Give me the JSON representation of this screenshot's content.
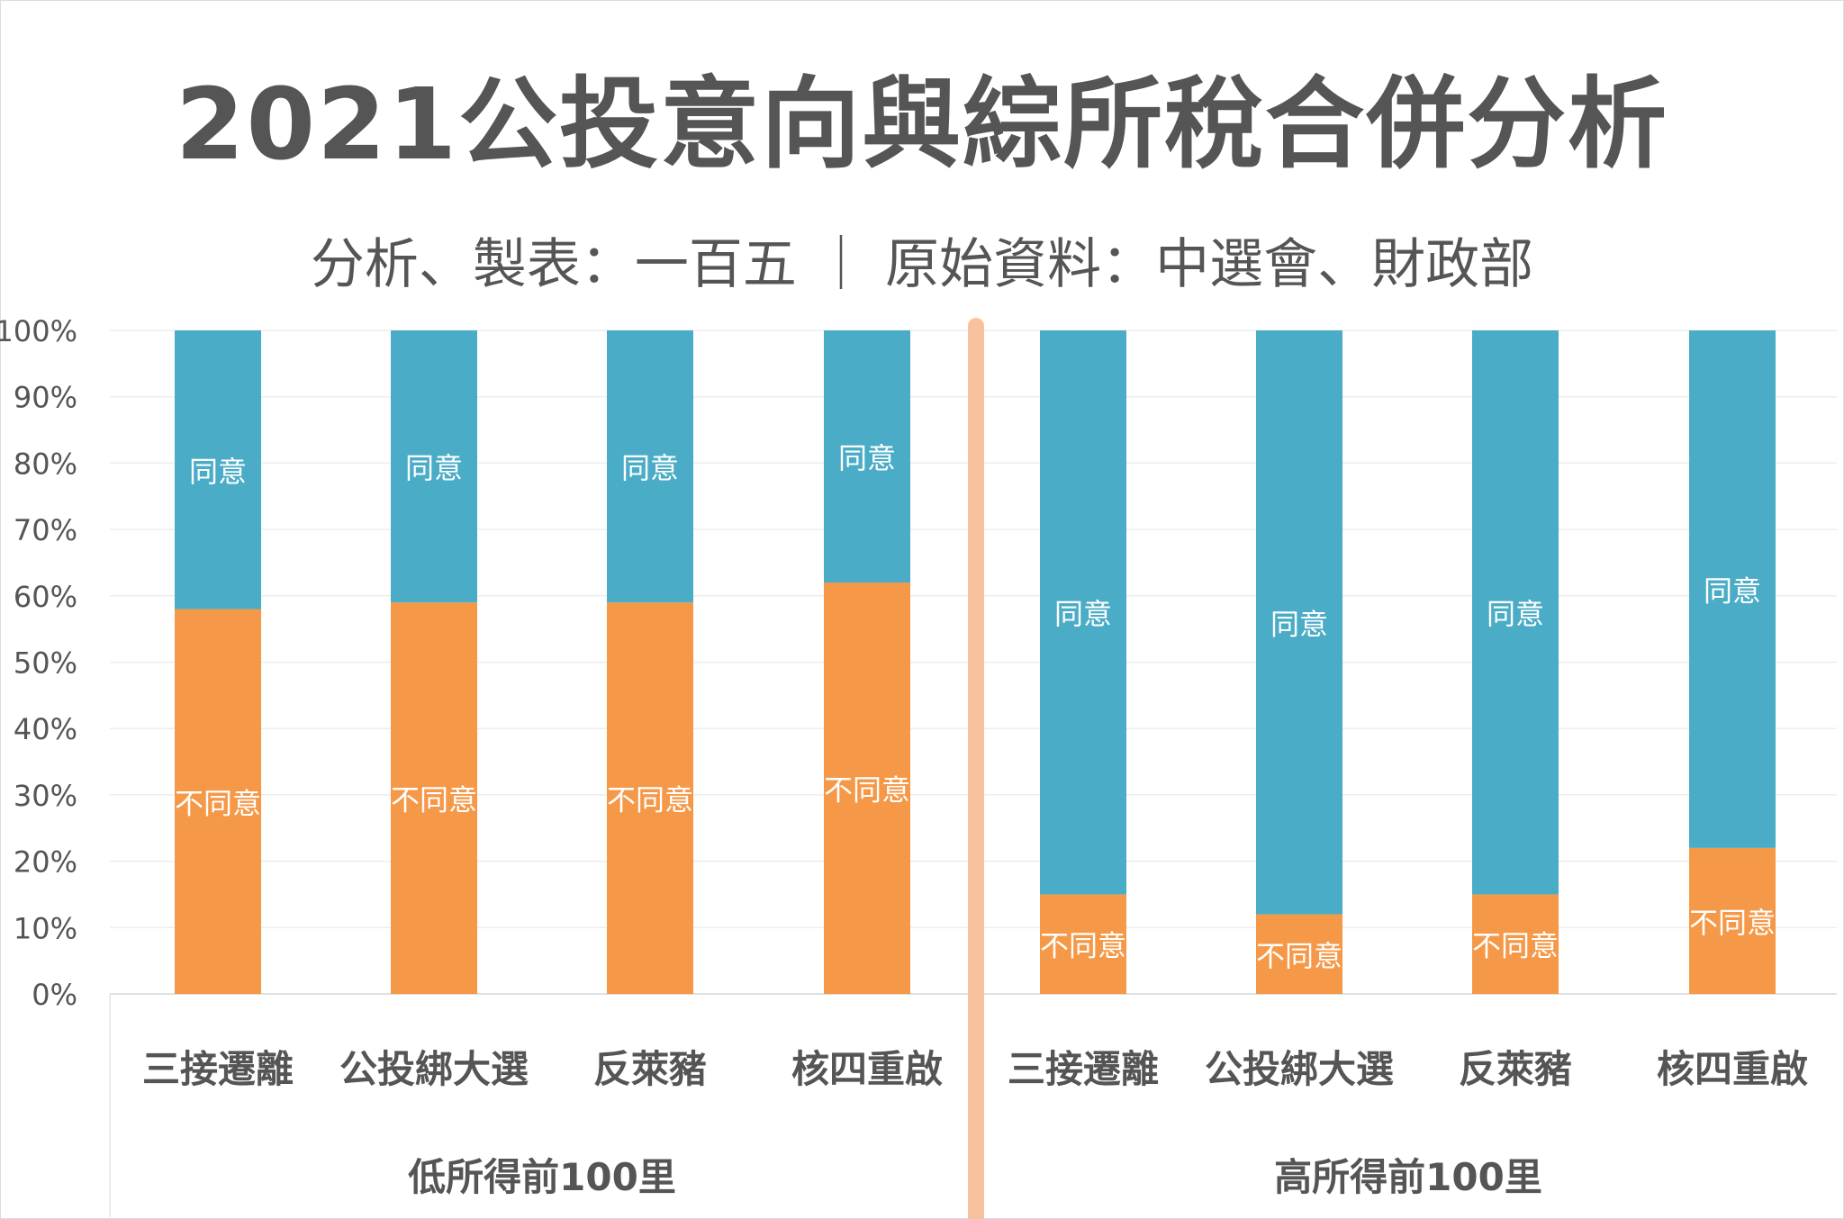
{
  "chart_data": {
    "type": "bar",
    "stacked": true,
    "title": "2021公投意向與綜所稅合併分析",
    "subtitle": "分析、製表：一百五 ｜ 原始資料：中選會、財政部",
    "ylim": [
      0,
      100
    ],
    "y_ticks": [
      "0%",
      "10%",
      "20%",
      "30%",
      "40%",
      "50%",
      "60%",
      "70%",
      "80%",
      "90%",
      "100%"
    ],
    "grid": true,
    "groups": [
      {
        "label": "低所得前100里",
        "categories": [
          "三接遷離",
          "公投綁大選",
          "反萊豬",
          "核四重啟"
        ]
      },
      {
        "label": "高所得前100里",
        "categories": [
          "三接遷離",
          "公投綁大選",
          "反萊豬",
          "核四重啟"
        ]
      }
    ],
    "categories": [
      "三接遷離",
      "公投綁大選",
      "反萊豬",
      "核四重啟",
      "三接遷離",
      "公投綁大選",
      "反萊豬",
      "核四重啟"
    ],
    "series": [
      {
        "name": "不同意",
        "color": "#F59847",
        "values": [
          58,
          59,
          59,
          62,
          15,
          12,
          15,
          22
        ]
      },
      {
        "name": "同意",
        "color": "#4AACC6",
        "values": [
          42,
          41,
          41,
          38,
          85,
          88,
          85,
          78
        ]
      }
    ],
    "divider_color": "#F9C29E"
  }
}
